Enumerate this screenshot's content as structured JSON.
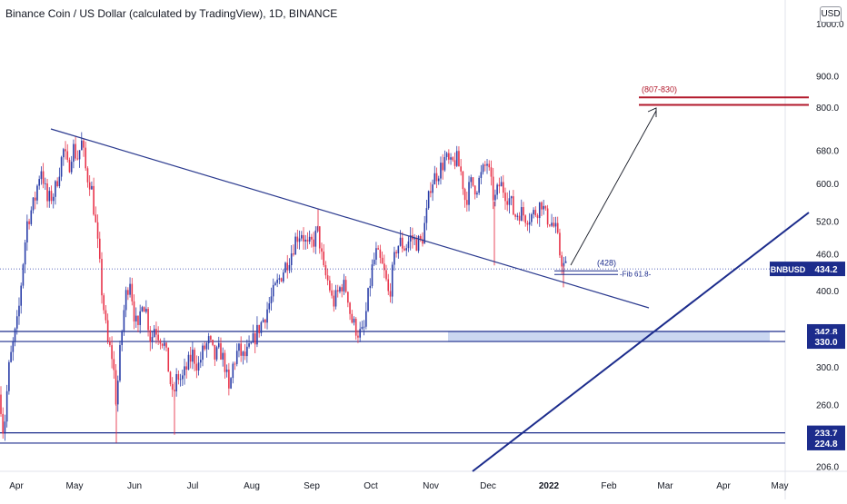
{
  "chart_data": {
    "type": "candlestick",
    "title": "Binance Coin / US Dollar (calculated by TradingView), 1D, BINANCE",
    "currency": "USD",
    "x_ticks": [
      "Apr",
      "May",
      "Jun",
      "Jul",
      "Aug",
      "Sep",
      "Oct",
      "Nov",
      "Dec",
      "2022",
      "Feb",
      "Mar",
      "Apr",
      "May"
    ],
    "y_ticks": [
      "206.0",
      "260.0",
      "300.0",
      "400.0",
      "460.0",
      "520.0",
      "600.0",
      "680.0",
      "800.0",
      "900.0"
    ],
    "y_top_label": "1000.0",
    "log_scale": true,
    "ylim": [
      200,
      1000
    ],
    "colors": {
      "up": "#2a3ea8",
      "down": "#e8344a",
      "level": "#1c2c8c",
      "target": "#b2182b",
      "zone": "#c5d3f0"
    },
    "price_label": {
      "symbol": "BNBUSD",
      "value": 434.2
    },
    "levels": [
      {
        "value": 342.8,
        "label": "342.8"
      },
      {
        "value": 330.0,
        "label": "330.0"
      },
      {
        "value": 233.7,
        "label": "233.7"
      },
      {
        "value": 224.8,
        "label": "224.8"
      }
    ],
    "annotations": {
      "target_label": "(807-830)",
      "target_values": [
        807,
        830
      ],
      "fib_level": "(428)",
      "fib_label": "-Fib 61.8-"
    },
    "anchors": [
      [
        0,
        270
      ],
      [
        4,
        230
      ],
      [
        10,
        300
      ],
      [
        20,
        360
      ],
      [
        30,
        520
      ],
      [
        38,
        560
      ],
      [
        45,
        640
      ],
      [
        52,
        560
      ],
      [
        60,
        580
      ],
      [
        70,
        680
      ],
      [
        75,
        630
      ],
      [
        80,
        690
      ],
      [
        85,
        660
      ],
      [
        90,
        700
      ],
      [
        95,
        620
      ],
      [
        100,
        600
      ],
      [
        106,
        500
      ],
      [
        112,
        400
      ],
      [
        118,
        330
      ],
      [
        124,
        310
      ],
      [
        128,
        260
      ],
      [
        133,
        330
      ],
      [
        138,
        390
      ],
      [
        143,
        420
      ],
      [
        147,
        370
      ],
      [
        152,
        340
      ],
      [
        156,
        390
      ],
      [
        161,
        370
      ],
      [
        166,
        330
      ],
      [
        170,
        350
      ],
      [
        174,
        340
      ],
      [
        180,
        330
      ],
      [
        185,
        300
      ],
      [
        190,
        265
      ],
      [
        195,
        290
      ],
      [
        200,
        285
      ],
      [
        206,
        300
      ],
      [
        212,
        315
      ],
      [
        218,
        300
      ],
      [
        224,
        320
      ],
      [
        230,
        330
      ],
      [
        236,
        310
      ],
      [
        242,
        320
      ],
      [
        248,
        300
      ],
      [
        252,
        270
      ],
      [
        256,
        300
      ],
      [
        262,
        320
      ],
      [
        268,
        310
      ],
      [
        275,
        320
      ],
      [
        282,
        340
      ],
      [
        290,
        360
      ],
      [
        296,
        380
      ],
      [
        302,
        400
      ],
      [
        308,
        420
      ],
      [
        314,
        440
      ],
      [
        320,
        460
      ],
      [
        326,
        490
      ],
      [
        332,
        500
      ],
      [
        338,
        470
      ],
      [
        344,
        480
      ],
      [
        350,
        500
      ],
      [
        356,
        430
      ],
      [
        362,
        410
      ],
      [
        366,
        380
      ],
      [
        370,
        390
      ],
      [
        376,
        410
      ],
      [
        382,
        400
      ],
      [
        386,
        360
      ],
      [
        390,
        350
      ],
      [
        395,
        340
      ],
      [
        400,
        340
      ],
      [
        406,
        400
      ],
      [
        410,
        440
      ],
      [
        414,
        460
      ],
      [
        420,
        440
      ],
      [
        424,
        420
      ],
      [
        428,
        390
      ],
      [
        432,
        430
      ],
      [
        436,
        470
      ],
      [
        440,
        480
      ],
      [
        446,
        470
      ],
      [
        452,
        490
      ],
      [
        458,
        480
      ],
      [
        464,
        480
      ],
      [
        470,
        540
      ],
      [
        474,
        600
      ],
      [
        480,
        620
      ],
      [
        486,
        640
      ],
      [
        490,
        660
      ],
      [
        496,
        640
      ],
      [
        502,
        660
      ],
      [
        508,
        620
      ],
      [
        512,
        560
      ],
      [
        518,
        600
      ],
      [
        524,
        590
      ],
      [
        530,
        620
      ],
      [
        536,
        650
      ],
      [
        540,
        600
      ],
      [
        544,
        560
      ],
      [
        550,
        600
      ],
      [
        556,
        580
      ],
      [
        562,
        560
      ],
      [
        566,
        530
      ],
      [
        572,
        540
      ],
      [
        578,
        530
      ],
      [
        584,
        530
      ],
      [
        590,
        540
      ],
      [
        596,
        560
      ],
      [
        600,
        530
      ],
      [
        606,
        520
      ],
      [
        612,
        500
      ],
      [
        616,
        460
      ],
      [
        620,
        440
      ],
      [
        624,
        434
      ]
    ]
  }
}
